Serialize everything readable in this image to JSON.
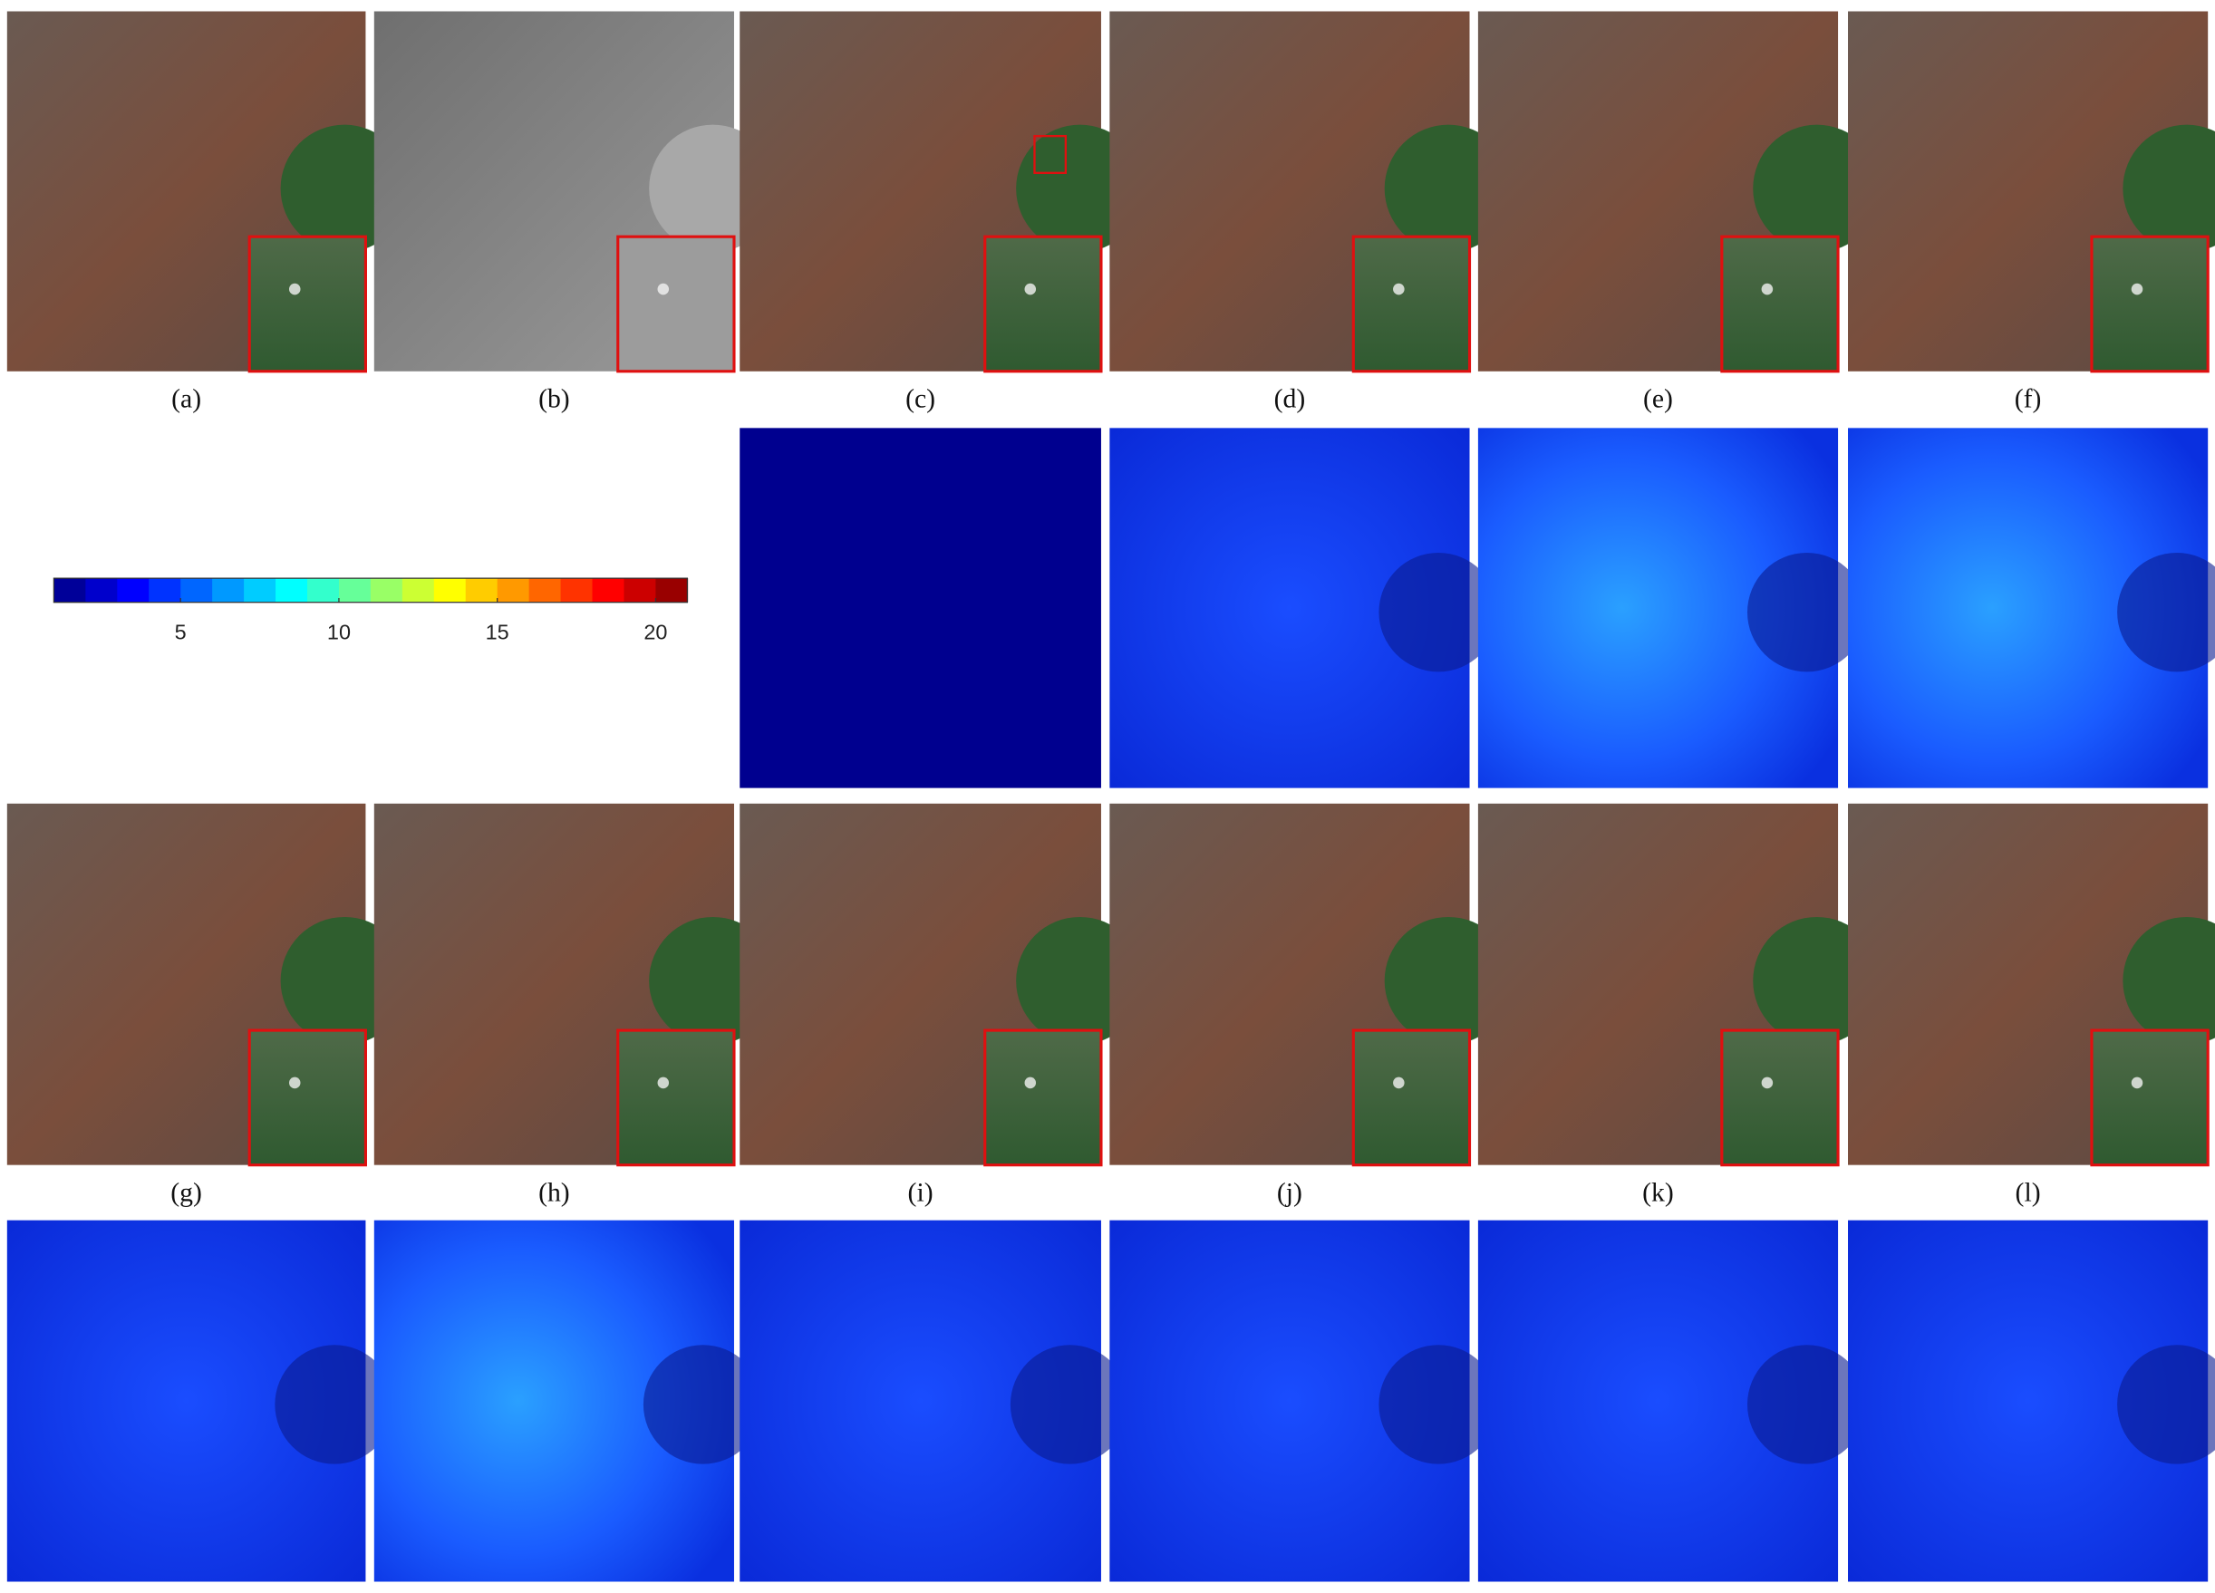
{
  "panel_labels": [
    "(a)",
    "(b)",
    "(c)",
    "(d)",
    "(e)",
    "(f)",
    "(g)",
    "(h)",
    "(i)",
    "(j)",
    "(k)",
    "(l)"
  ],
  "colorbar": {
    "lim": [
      1,
      21
    ],
    "ticks": [
      5,
      10,
      15,
      20
    ]
  }
}
